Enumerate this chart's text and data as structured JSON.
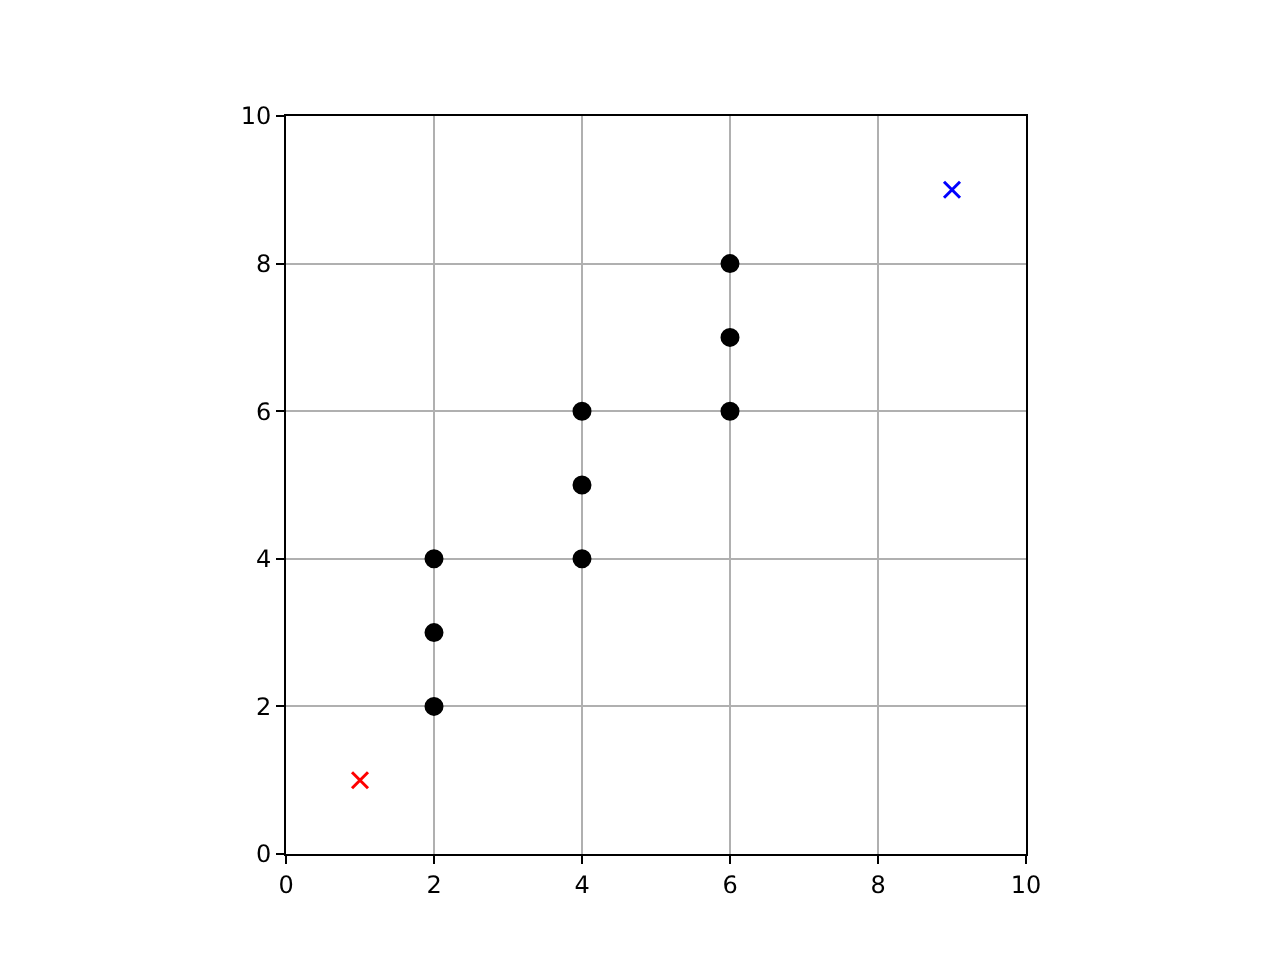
{
  "chart_data": {
    "type": "scatter",
    "series": [
      {
        "color": "#000000",
        "marker": "circle",
        "x": [
          2,
          2,
          2,
          4,
          4,
          4,
          6,
          6,
          6
        ],
        "values": [
          2,
          3,
          4,
          4,
          5,
          6,
          6,
          7,
          8
        ]
      },
      {
        "color": "#ff0000",
        "marker": "cross",
        "x": [
          1
        ],
        "values": [
          1
        ]
      },
      {
        "color": "#0000ff",
        "marker": "cross",
        "x": [
          9
        ],
        "values": [
          9
        ]
      }
    ],
    "xlim": [
      0,
      10
    ],
    "ylim": [
      0,
      10
    ],
    "xticks": [
      0,
      2,
      4,
      6,
      8,
      10
    ],
    "yticks": [
      0,
      2,
      4,
      6,
      8,
      10
    ],
    "grid": true
  }
}
